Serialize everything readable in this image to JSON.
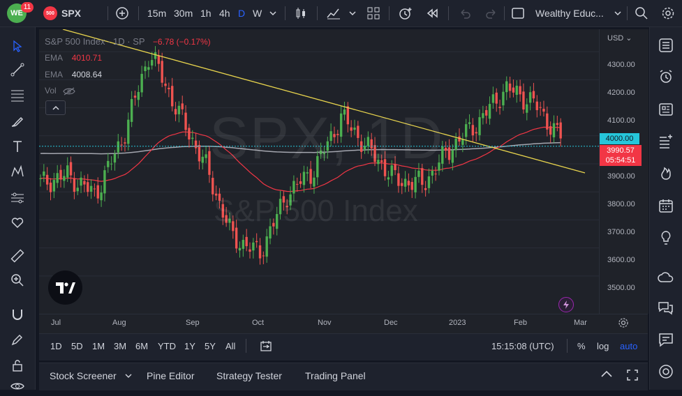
{
  "topbar": {
    "logo_badge": "11",
    "symbol_badge": "500",
    "symbol": "SPX",
    "intervals": [
      "15m",
      "30m",
      "1h",
      "4h",
      "D",
      "W"
    ],
    "active_interval": "D",
    "layout_name": "Wealthy Educ..."
  },
  "legend": {
    "title": "S&P 500 Index · 1D · SP",
    "change": "−6.78 (−0.17%)",
    "ema1_label": "EMA",
    "ema1_value": "4010.71",
    "ema2_label": "EMA",
    "ema2_value": "4008.64",
    "vol_label": "Vol"
  },
  "watermark": {
    "symbol": "SPX, 1D",
    "name": "S&P 500 Index"
  },
  "price_scale": {
    "currency": "USD",
    "labels": [
      "4300.00",
      "4200.00",
      "4100.00",
      "4000.00",
      "3900.00",
      "3800.00",
      "3700.00",
      "3600.00",
      "3500.00"
    ],
    "crosshair_label": "4000.00",
    "last_price": "3990.57",
    "countdown": "05:54:51"
  },
  "time_scale": {
    "labels": [
      "Jul",
      "Aug",
      "Sep",
      "Oct",
      "Nov",
      "Dec",
      "2023",
      "Feb",
      "Mar"
    ]
  },
  "range_bar": {
    "ranges": [
      "1D",
      "5D",
      "1M",
      "3M",
      "6M",
      "YTD",
      "1Y",
      "5Y",
      "All"
    ],
    "clock": "15:15:08 (UTC)",
    "percent": "%",
    "log": "log",
    "auto": "auto"
  },
  "bottom_panel": {
    "tabs": [
      "Stock Screener",
      "Pine Editor",
      "Strategy Tester",
      "Trading Panel"
    ]
  },
  "colors": {
    "up": "#26a69a",
    "up_bright": "#4caf50",
    "down": "#ef5350",
    "ema_fast": "#f23645",
    "ema_slow": "#b2b5be",
    "trendline": "#e8d44d",
    "accent": "#2962ff",
    "last_price_bg": "#f23645",
    "crosshair_bg": "#26c6da"
  },
  "chart_data": {
    "type": "candlestick",
    "symbol": "SPX",
    "interval": "1D",
    "ylim": [
      3440,
      4360
    ],
    "price_ticks": [
      4300,
      4200,
      4100,
      4000,
      3900,
      3800,
      3700,
      3600,
      3500
    ],
    "anchors": [
      {
        "month": "Jun end",
        "close": 3830
      },
      {
        "month": "Jul",
        "close": 3860
      },
      {
        "month": "Jul mid",
        "close": 3790
      },
      {
        "month": "Aug start",
        "close": 3990
      },
      {
        "month": "Aug peak",
        "close": 4300
      },
      {
        "month": "Sep start",
        "close": 4090
      },
      {
        "month": "Sep mid",
        "close": 3900
      },
      {
        "month": "Oct start",
        "close": 3640
      },
      {
        "month": "Oct low",
        "close": 3580
      },
      {
        "month": "Oct end",
        "close": 3790
      },
      {
        "month": "Nov mid",
        "close": 3880
      },
      {
        "month": "Dec start",
        "close": 4070
      },
      {
        "month": "Dec mid",
        "close": 3950
      },
      {
        "month": "Dec end",
        "close": 3840
      },
      {
        "month": "2023 start",
        "close": 3830
      },
      {
        "month": "Jan mid",
        "close": 3960
      },
      {
        "month": "Jan end",
        "close": 4050
      },
      {
        "month": "Feb start",
        "close": 4170
      },
      {
        "month": "Feb mid",
        "close": 4120
      },
      {
        "month": "Feb last",
        "close": 3990.57
      }
    ],
    "ema_fast_last": 4010.71,
    "ema_slow_last": 4008.64
  }
}
